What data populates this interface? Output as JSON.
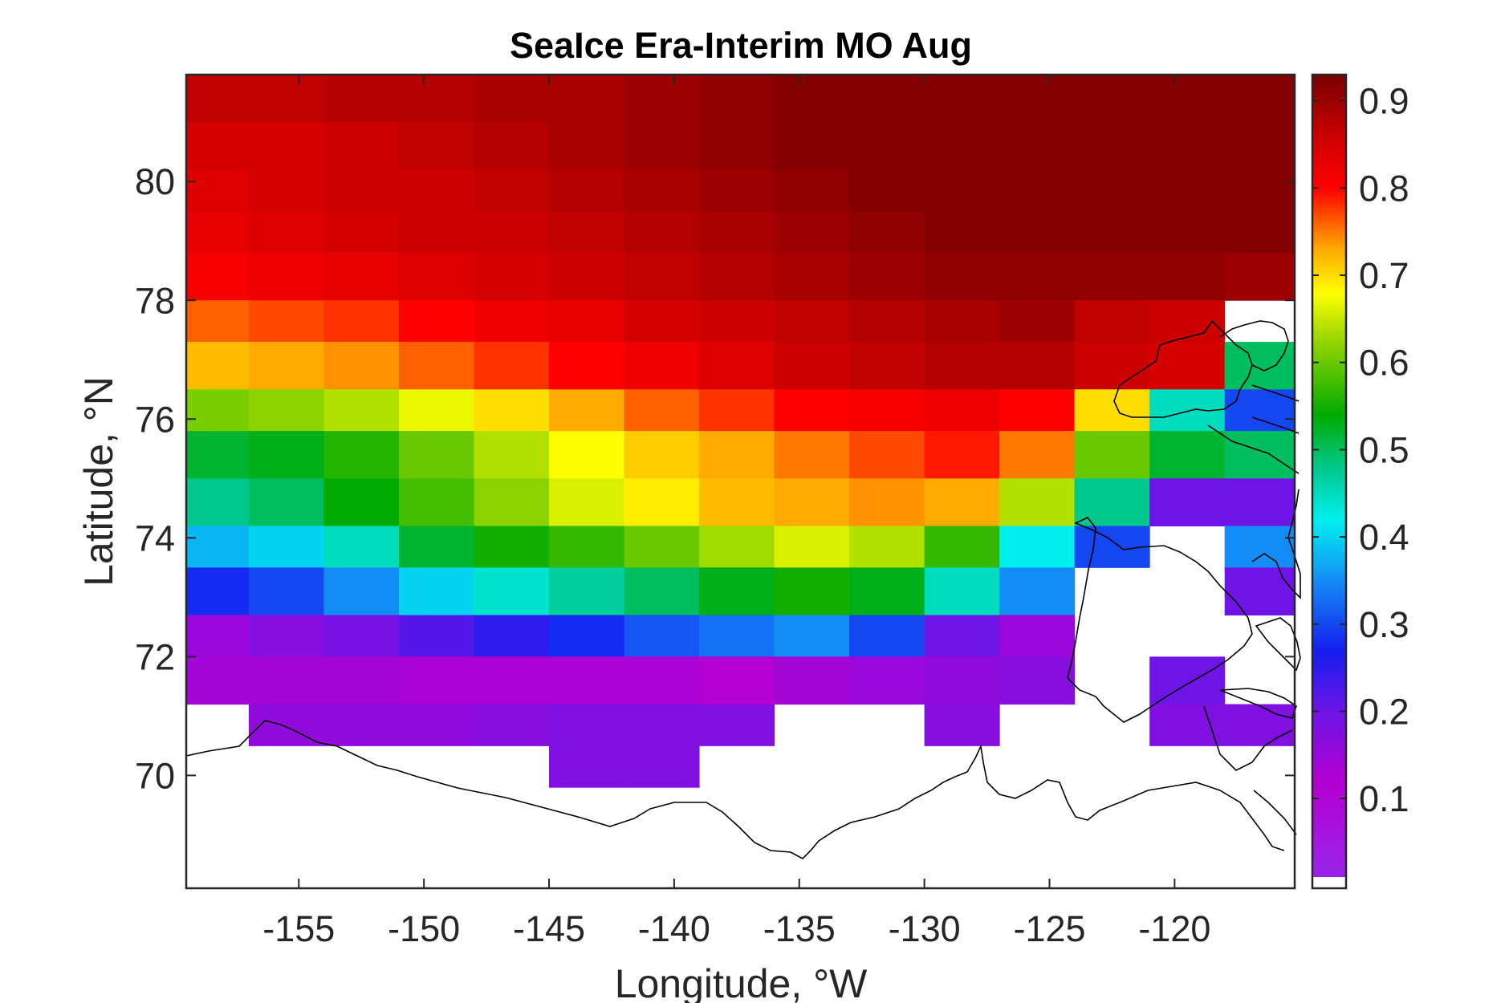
{
  "figure": {
    "title": "SeaIce Era-Interim MO Aug"
  },
  "chart_data": {
    "type": "heatmap",
    "title": "SeaIce Era-Interim MO Aug",
    "xlabel": "Longitude, °W",
    "ylabel": "Latitude, °N",
    "xlim": [
      -159.5,
      -115.2
    ],
    "ylim": [
      68.1,
      81.8
    ],
    "xticks": [
      -155,
      -150,
      -145,
      -140,
      -135,
      -130,
      -125,
      -120
    ],
    "xtick_labels": [
      "-155",
      "-150",
      "-145",
      "-140",
      "-135",
      "-130",
      "-125",
      "-120"
    ],
    "yticks": [
      70,
      72,
      74,
      76,
      78,
      80
    ],
    "ytick_labels": [
      "70",
      "72",
      "74",
      "76",
      "78",
      "80"
    ],
    "colorbar": {
      "range": [
        0.01,
        0.93
      ],
      "ticks": [
        0.1,
        0.2,
        0.3,
        0.4,
        0.5,
        0.6,
        0.7,
        0.8,
        0.9
      ],
      "tick_labels": [
        "0.1",
        "0.2",
        "0.3",
        "0.4",
        "0.5",
        "0.6",
        "0.7",
        "0.8",
        "0.9"
      ],
      "colormap": "jet-like with purple/magenta low end, dark red high end"
    },
    "x_edges": [
      -159.5,
      -157.0,
      -154.0,
      -151.0,
      -148.0,
      -145.0,
      -142.0,
      -139.0,
      -136.0,
      -133.0,
      -130.0,
      -127.0,
      -124.0,
      -121.0,
      -118.0,
      -115.2
    ],
    "rows": [
      {
        "lat": [
          81.0,
          81.8
        ],
        "values": [
          0.87,
          0.87,
          0.88,
          0.88,
          0.89,
          0.89,
          0.9,
          0.91,
          0.92,
          0.92,
          0.92,
          0.92,
          0.92,
          0.92,
          0.92
        ]
      },
      {
        "lat": [
          80.2,
          81.0
        ],
        "values": [
          0.85,
          0.85,
          0.86,
          0.87,
          0.88,
          0.89,
          0.9,
          0.91,
          0.92,
          0.92,
          0.92,
          0.92,
          0.92,
          0.92,
          0.92
        ]
      },
      {
        "lat": [
          79.5,
          80.2
        ],
        "values": [
          0.84,
          0.85,
          0.86,
          0.86,
          0.87,
          0.88,
          0.89,
          0.9,
          0.91,
          0.92,
          0.92,
          0.92,
          0.92,
          0.92,
          0.92
        ]
      },
      {
        "lat": [
          78.8,
          79.5
        ],
        "values": [
          0.83,
          0.84,
          0.85,
          0.86,
          0.86,
          0.87,
          0.88,
          0.89,
          0.9,
          0.91,
          0.92,
          0.92,
          0.92,
          0.92,
          0.92
        ]
      },
      {
        "lat": [
          78.0,
          78.8
        ],
        "values": [
          0.81,
          0.82,
          0.83,
          0.84,
          0.85,
          0.86,
          0.87,
          0.88,
          0.89,
          0.9,
          0.91,
          0.91,
          0.91,
          0.91,
          0.9
        ]
      },
      {
        "lat": [
          77.3,
          78.0
        ],
        "values": [
          0.76,
          0.77,
          0.78,
          0.8,
          0.82,
          0.83,
          0.85,
          0.86,
          0.87,
          0.88,
          0.89,
          0.9,
          0.87,
          0.86,
          null
        ]
      },
      {
        "lat": [
          76.5,
          77.3
        ],
        "values": [
          0.72,
          0.73,
          0.74,
          0.76,
          0.78,
          0.8,
          0.82,
          0.84,
          0.86,
          0.87,
          0.88,
          0.88,
          0.86,
          0.85,
          0.5
        ]
      },
      {
        "lat": [
          75.8,
          76.5
        ],
        "values": [
          0.61,
          0.62,
          0.64,
          0.67,
          0.7,
          0.73,
          0.76,
          0.78,
          0.8,
          0.81,
          0.82,
          0.8,
          0.7,
          0.45,
          0.3
        ]
      },
      {
        "lat": [
          75.0,
          75.8
        ],
        "values": [
          0.52,
          0.53,
          0.56,
          0.6,
          0.64,
          0.68,
          0.71,
          0.73,
          0.75,
          0.77,
          0.79,
          0.75,
          0.6,
          0.52,
          0.5
        ]
      },
      {
        "lat": [
          74.2,
          75.0
        ],
        "values": [
          0.48,
          0.5,
          0.54,
          0.58,
          0.62,
          0.66,
          0.69,
          0.72,
          0.73,
          0.74,
          0.73,
          0.64,
          0.48,
          0.2,
          0.2
        ]
      },
      {
        "lat": [
          73.5,
          74.2
        ],
        "values": [
          0.38,
          0.4,
          0.45,
          0.52,
          0.55,
          0.57,
          0.6,
          0.63,
          0.66,
          0.64,
          0.57,
          0.42,
          0.3,
          null,
          0.35
        ]
      },
      {
        "lat": [
          72.7,
          73.5
        ],
        "values": [
          0.28,
          0.3,
          0.35,
          0.4,
          0.44,
          0.47,
          0.5,
          0.53,
          0.55,
          0.53,
          0.45,
          0.35,
          null,
          null,
          0.2
        ]
      },
      {
        "lat": [
          72.0,
          72.7
        ],
        "values": [
          0.15,
          0.17,
          0.19,
          0.22,
          0.25,
          0.28,
          0.31,
          0.33,
          0.35,
          0.3,
          0.2,
          0.15,
          null,
          null,
          null
        ]
      },
      {
        "lat": [
          71.2,
          72.0
        ],
        "values": [
          0.14,
          0.14,
          0.14,
          0.13,
          0.13,
          0.13,
          0.13,
          0.12,
          0.14,
          0.15,
          0.16,
          0.17,
          null,
          0.2,
          null
        ]
      },
      {
        "lat": [
          70.5,
          71.2
        ],
        "values": [
          null,
          0.16,
          0.16,
          0.16,
          0.17,
          0.18,
          0.18,
          0.18,
          null,
          null,
          0.17,
          null,
          null,
          0.18,
          0.18
        ]
      },
      {
        "lat": [
          69.8,
          70.5
        ],
        "values": [
          null,
          null,
          null,
          null,
          null,
          0.18,
          0.18,
          null,
          null,
          null,
          null,
          null,
          null,
          null,
          null
        ]
      }
    ]
  }
}
